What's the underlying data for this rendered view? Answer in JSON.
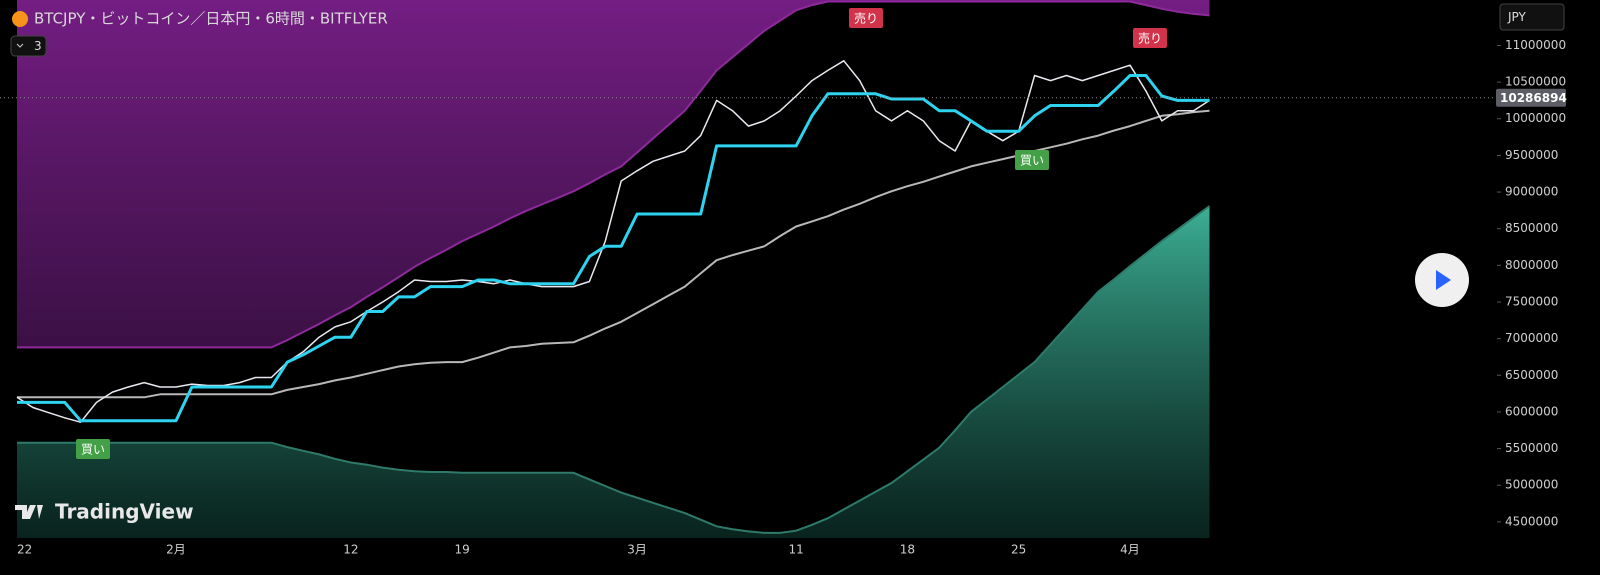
{
  "chart_data": {
    "type": "line",
    "title": "BTCJPY・ビットコイン／日本円・6時間・BITFLYER",
    "categories": [
      "22",
      null,
      null,
      null,
      null,
      null,
      null,
      null,
      null,
      null,
      "2月",
      null,
      null,
      null,
      null,
      null,
      null,
      null,
      null,
      null,
      null,
      "12",
      null,
      null,
      null,
      null,
      null,
      null,
      "19",
      null,
      null,
      null,
      null,
      null,
      null,
      null,
      null,
      null,
      null,
      "3月",
      null,
      null,
      null,
      null,
      null,
      null,
      null,
      null,
      null,
      "11",
      null,
      null,
      null,
      null,
      null,
      null,
      "18",
      null,
      null,
      null,
      null,
      null,
      null,
      "25",
      null,
      null,
      null,
      null,
      null,
      null,
      "4月",
      null,
      null,
      null,
      null,
      null
    ],
    "ylim": [
      4280000,
      11620000
    ],
    "yticks": [
      4500000,
      5000000,
      5500000,
      6000000,
      6500000,
      7000000,
      7500000,
      8000000,
      8500000,
      9000000,
      9500000,
      10000000,
      10500000,
      11000000
    ],
    "last_price": 10286894,
    "series": [
      {
        "color": "#8e2a9c",
        "fill": "above",
        "values": [
          6880000,
          6880000,
          6880000,
          6880000,
          6880000,
          6880000,
          6880000,
          6880000,
          6880000,
          6880000,
          6880000,
          6880000,
          6880000,
          6880000,
          6880000,
          6880000,
          6880000,
          6980000,
          7090000,
          7200000,
          7320000,
          7430000,
          7570000,
          7700000,
          7840000,
          7980000,
          8100000,
          8210000,
          8330000,
          8430000,
          8530000,
          8640000,
          8740000,
          8830000,
          8920000,
          9010000,
          9120000,
          9240000,
          9350000,
          9540000,
          9730000,
          9920000,
          10110000,
          10380000,
          10660000,
          10840000,
          11020000,
          11200000,
          11340000,
          11480000,
          11550000,
          11600000,
          11600000,
          11600000,
          11600000,
          11600000,
          11600000,
          11600000,
          11600000,
          11600000,
          11600000,
          11600000,
          11600000,
          11600000,
          11600000,
          11600000,
          11600000,
          11600000,
          11600000,
          11600000,
          11600000,
          11550000,
          11500000,
          11460000,
          11430000,
          11410000
        ]
      },
      {
        "color": "#2f7a6a",
        "fill": "below",
        "values": [
          5580000,
          5580000,
          5580000,
          5580000,
          5580000,
          5580000,
          5580000,
          5580000,
          5580000,
          5580000,
          5580000,
          5580000,
          5580000,
          5580000,
          5580000,
          5580000,
          5580000,
          5520000,
          5470000,
          5420000,
          5360000,
          5310000,
          5280000,
          5240000,
          5210000,
          5190000,
          5180000,
          5180000,
          5170000,
          5170000,
          5170000,
          5170000,
          5170000,
          5170000,
          5170000,
          5170000,
          5080000,
          4990000,
          4900000,
          4830000,
          4760000,
          4690000,
          4620000,
          4530000,
          4440000,
          4400000,
          4370000,
          4350000,
          4350000,
          4380000,
          4460000,
          4550000,
          4670000,
          4790000,
          4910000,
          5030000,
          5190000,
          5350000,
          5510000,
          5750000,
          6000000,
          6170000,
          6340000,
          6510000,
          6680000,
          6920000,
          7160000,
          7400000,
          7640000,
          7810000,
          7990000,
          8160000,
          8330000,
          8490000,
          8650000,
          8810000
        ]
      },
      {
        "color": "#b8b8b8",
        "line_width": 2,
        "values": [
          6200000,
          6200000,
          6200000,
          6200000,
          6200000,
          6200000,
          6200000,
          6200000,
          6200000,
          6240000,
          6240000,
          6240000,
          6240000,
          6240000,
          6240000,
          6240000,
          6240000,
          6300000,
          6340000,
          6380000,
          6430000,
          6470000,
          6520000,
          6570000,
          6620000,
          6650000,
          6670000,
          6680000,
          6680000,
          6740000,
          6810000,
          6880000,
          6900000,
          6930000,
          6940000,
          6950000,
          7040000,
          7140000,
          7230000,
          7350000,
          7470000,
          7590000,
          7710000,
          7890000,
          8070000,
          8140000,
          8200000,
          8260000,
          8400000,
          8530000,
          8600000,
          8670000,
          8760000,
          8840000,
          8930000,
          9010000,
          9080000,
          9140000,
          9210000,
          9280000,
          9350000,
          9400000,
          9450000,
          9500000,
          9560000,
          9610000,
          9660000,
          9720000,
          9770000,
          9840000,
          9900000,
          9970000,
          10040000,
          10060000,
          10090000,
          10110000
        ]
      },
      {
        "color": "#e8e8f0",
        "line_width": 1.5,
        "values": [
          6200000,
          6060000,
          5990000,
          5920000,
          5860000,
          6130000,
          6270000,
          6340000,
          6400000,
          6340000,
          6340000,
          6380000,
          6360000,
          6360000,
          6400000,
          6470000,
          6470000,
          6680000,
          6820000,
          7020000,
          7160000,
          7230000,
          7370000,
          7500000,
          7640000,
          7800000,
          7780000,
          7780000,
          7800000,
          7780000,
          7750000,
          7800000,
          7750000,
          7710000,
          7710000,
          7710000,
          7780000,
          8330000,
          9150000,
          9290000,
          9420000,
          9490000,
          9560000,
          9770000,
          10250000,
          10110000,
          9900000,
          9970000,
          10110000,
          10310000,
          10520000,
          10660000,
          10790000,
          10520000,
          10110000,
          9970000,
          10110000,
          9970000,
          9700000,
          9560000,
          9970000,
          9830000,
          9700000,
          9830000,
          10590000,
          10520000,
          10590000,
          10520000,
          10590000,
          10660000,
          10730000,
          10380000,
          9970000,
          10110000,
          10110000,
          10250000
        ]
      },
      {
        "color": "#2ed3f0",
        "line_width": 3,
        "values": [
          6130000,
          6130000,
          6130000,
          6130000,
          5880000,
          5880000,
          5880000,
          5880000,
          5880000,
          5880000,
          5880000,
          6340000,
          6340000,
          6340000,
          6340000,
          6340000,
          6340000,
          6680000,
          6780000,
          6900000,
          7020000,
          7020000,
          7370000,
          7370000,
          7570000,
          7570000,
          7710000,
          7710000,
          7710000,
          7800000,
          7800000,
          7750000,
          7750000,
          7750000,
          7750000,
          7750000,
          8120000,
          8260000,
          8260000,
          8700000,
          8700000,
          8700000,
          8700000,
          8700000,
          9630000,
          9630000,
          9630000,
          9630000,
          9630000,
          9630000,
          10040000,
          10340000,
          10340000,
          10340000,
          10340000,
          10270000,
          10270000,
          10270000,
          10110000,
          10110000,
          9970000,
          9830000,
          9830000,
          9830000,
          10040000,
          10180000,
          10180000,
          10180000,
          10180000,
          10380000,
          10590000,
          10590000,
          10310000,
          10250000,
          10250000,
          10250000
        ]
      }
    ],
    "annotations": [
      {
        "text": "売り",
        "color": "#d1334a"
      },
      {
        "text": "売り",
        "color": "#d1334a"
      },
      {
        "text": "買い",
        "color": "#43a047"
      },
      {
        "text": "買い",
        "color": "#43a047"
      }
    ]
  },
  "ui": {
    "currency": "JPY",
    "count": "3",
    "brand": "TradingView"
  }
}
